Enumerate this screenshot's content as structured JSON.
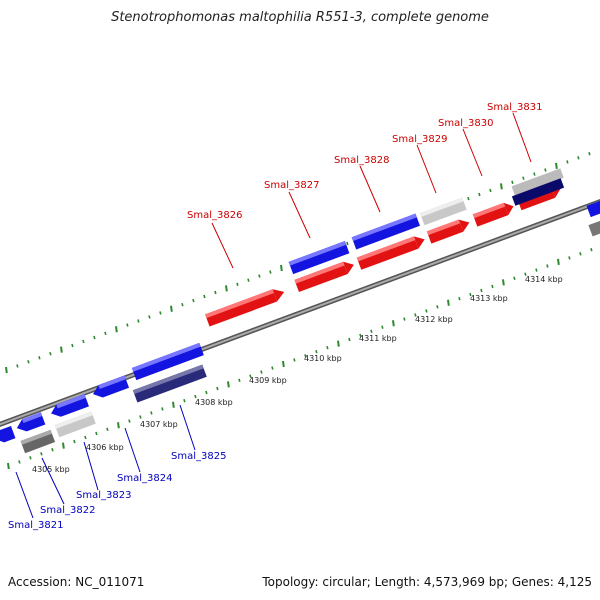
{
  "title": "Stenotrophomonas maltophilia R551-3, complete genome",
  "footer": {
    "accession": "Accession: NC_011071",
    "stats": "Topology: circular; Length: 4,573,969 bp; Genes: 4,125"
  },
  "colors": {
    "forward_gene": "#e31212",
    "reverse_gene": "#1414e0",
    "reverse_dark_gene": "#2a2a7a",
    "neutral_light_gene": "#c8c8c8",
    "neutral_dark_gene": "#666666",
    "backbone": "#888888",
    "tick": "#2d8a2d",
    "forward_label": "#cc0000",
    "reverse_label": "#0000bb"
  },
  "kbp_labels": [
    "4305 kbp",
    "4306 kbp",
    "4307 kbp",
    "4308 kbp",
    "4309 kbp",
    "4310 kbp",
    "4311 kbp",
    "4312 kbp",
    "4313 kbp",
    "4314 kbp"
  ],
  "forward_labels": [
    "Smal_3826",
    "Smal_3827",
    "Smal_3828",
    "Smal_3829",
    "Smal_3830",
    "Smal_3831"
  ],
  "reverse_labels": [
    "Smal_3821",
    "Smal_3822",
    "Smal_3823",
    "Smal_3824",
    "Smal_3825"
  ]
}
